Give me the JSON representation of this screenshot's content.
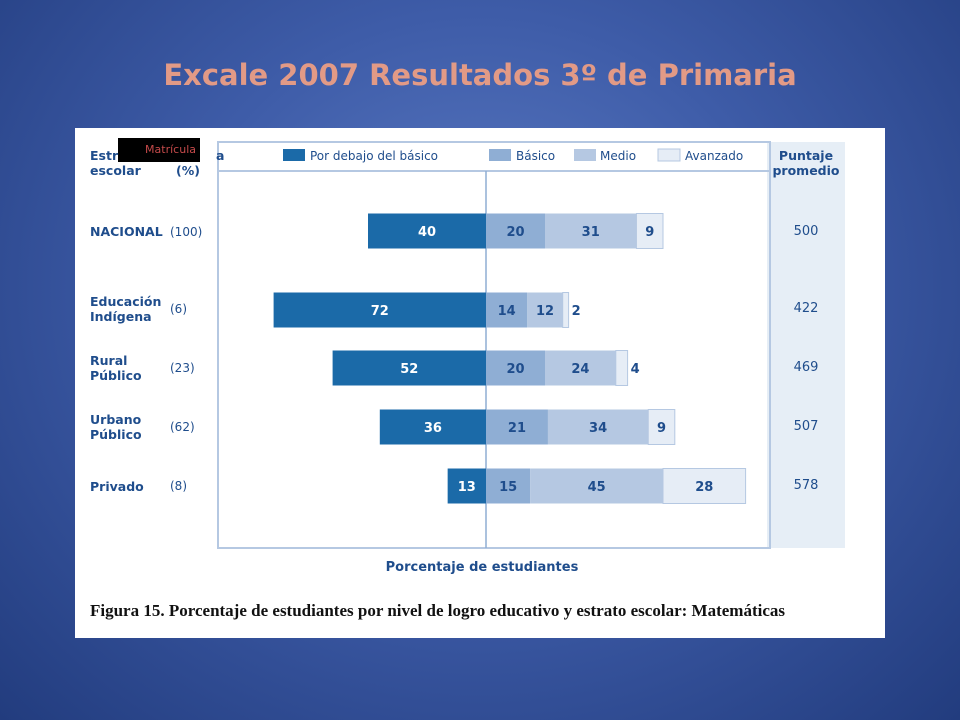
{
  "slide_title": "Excale 2007 Resultados 3º de Primaria",
  "overlay_tag": "Matrícula",
  "headers": {
    "stratum_line1": "Estr",
    "stratum_line1_end": "a",
    "stratum_line2": "escolar",
    "share_label": "(%)",
    "score_line1": "Puntaje",
    "score_line2": "promedio"
  },
  "legend": [
    "Por debajo del básico",
    "Básico",
    "Medio",
    "Avanzado"
  ],
  "colors": {
    "below_basic": "#1b6aa8",
    "basic": "#8faed4",
    "medium": "#b5c8e2",
    "advanced": "#e6edf6",
    "label_text": "#1f4d8c"
  },
  "figure_caption": "Figura 15. Porcentaje de estudiantes por nivel de logro educativo y estrato escolar: Matemáticas",
  "chart_data": {
    "type": "bar",
    "orientation": "horizontal-diverging-stacked",
    "xlabel": "Porcentaje de estudiantes",
    "categories": [
      {
        "line1": "NACIONAL",
        "line2": "",
        "share": "(100)",
        "score": "500"
      },
      {
        "line1": "Educación",
        "line2": "Indígena",
        "share": "(6)",
        "score": "422"
      },
      {
        "line1": "Rural",
        "line2": "Público",
        "share": "(23)",
        "score": "469"
      },
      {
        "line1": "Urbano",
        "line2": "Público",
        "share": "(62)",
        "score": "507"
      },
      {
        "line1": "Privado",
        "line2": "",
        "share": "(8)",
        "score": "578"
      }
    ],
    "series": [
      {
        "name": "Por debajo del básico",
        "values": [
          40,
          72,
          52,
          36,
          13
        ],
        "direction": "left"
      },
      {
        "name": "Básico",
        "values": [
          20,
          14,
          20,
          21,
          15
        ],
        "direction": "right"
      },
      {
        "name": "Medio",
        "values": [
          31,
          12,
          24,
          34,
          45
        ],
        "direction": "right"
      },
      {
        "name": "Avanzado",
        "values": [
          9,
          2,
          4,
          9,
          28
        ],
        "direction": "right"
      }
    ]
  }
}
